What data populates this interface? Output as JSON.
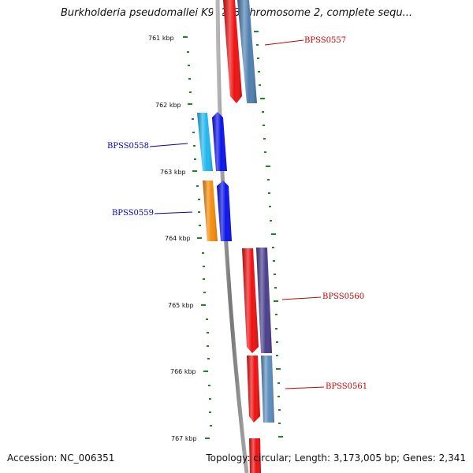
{
  "title": "Burkholderia pseudomallei K96243 chromosome 2, complete sequ...",
  "footer": {
    "accession": "Accession: NC_006351",
    "topology": "Topology: circular; Length: 3,173,005 bp; Genes: 2,341"
  },
  "ticks": [
    "761 kbp",
    "762 kbp",
    "763 kbp",
    "764 kbp",
    "765 kbp",
    "766 kbp",
    "767 kbp"
  ],
  "genes": [
    {
      "name": "BPSS0557",
      "strand": "reverse",
      "label_color": "#cc0000",
      "colors": [
        "#ee1111",
        "#4f7fb0"
      ]
    },
    {
      "name": "BPSS0558",
      "strand": "forward",
      "label_color": "#0000bb",
      "colors": [
        "#1fb8ee",
        "#0b14e8"
      ]
    },
    {
      "name": "BPSS0559",
      "strand": "forward",
      "label_color": "#0000bb",
      "colors": [
        "#f48c0c",
        "#0b14e8"
      ]
    },
    {
      "name": "BPSS0560",
      "strand": "reverse",
      "label_color": "#cc0000",
      "colors": [
        "#ee1111",
        "#4a3f8c"
      ]
    },
    {
      "name": "BPSS0561",
      "strand": "reverse",
      "label_color": "#cc0000",
      "colors": [
        "#ee1111",
        "#5b8dbd"
      ]
    }
  ],
  "colors": {
    "backbone": "#8a8a8a",
    "tick": "#1a8a1a"
  }
}
